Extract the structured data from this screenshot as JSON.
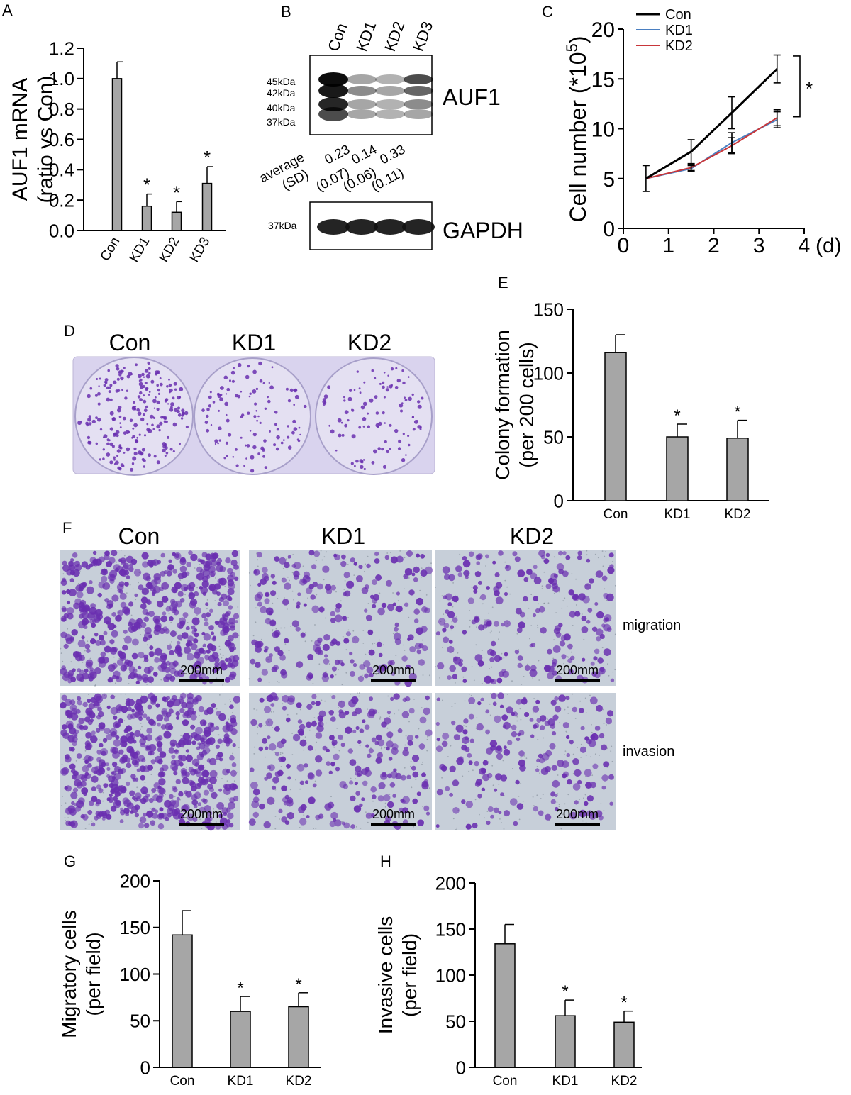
{
  "panels": {
    "A": {
      "label": "A"
    },
    "B": {
      "label": "B"
    },
    "C": {
      "label": "C"
    },
    "D": {
      "label": "D"
    },
    "E": {
      "label": "E"
    },
    "F": {
      "label": "F"
    },
    "G": {
      "label": "G"
    },
    "H": {
      "label": "H"
    }
  },
  "colors": {
    "bar_fill": "#a6a6a6",
    "line_con": "#000000",
    "line_kd1": "#4a7fc1",
    "line_kd2": "#c8363a",
    "crystal_violet": "#6a2fb0",
    "plate_bg": "#d9d3ee",
    "micro_bg": "#c7cfd9"
  },
  "western": {
    "lanes": [
      "Con",
      "KD1",
      "KD2",
      "KD3"
    ],
    "auf1_label": "AUF1",
    "gapdh_label": "GAPDH",
    "auf1_markers": [
      "45kDa",
      "42kDa",
      "40kDa",
      "37kDa"
    ],
    "gapdh_marker": "37kDa",
    "quant_label_1": "average",
    "quant_label_2": "(SD)",
    "quant_values": [
      "0.23",
      "0.14",
      "0.33"
    ],
    "quant_sds": [
      "(0.07)",
      "(0.06)",
      "(0.11)"
    ]
  },
  "colony_plate": {
    "labels": [
      "Con",
      "KD1",
      "KD2"
    ]
  },
  "transwell": {
    "column_labels": [
      "Con",
      "KD1",
      "KD2"
    ],
    "row_labels": [
      "migration",
      "invasion"
    ],
    "scale_bar": "200mm"
  },
  "chart_data": [
    {
      "id": "A",
      "type": "bar",
      "ylabel_line1": "AUF1 mRNA",
      "ylabel_line2": "(ratio vs Con)",
      "categories": [
        "Con",
        "KD1",
        "KD2",
        "KD3"
      ],
      "values": [
        1.0,
        0.16,
        0.12,
        0.31
      ],
      "errors": [
        0.11,
        0.08,
        0.07,
        0.11
      ],
      "significant": [
        false,
        true,
        true,
        true
      ],
      "star": "*",
      "ylim": [
        0,
        1.2
      ],
      "yticks": [
        "0.0",
        "0.2",
        "0.4",
        "0.6",
        "0.8",
        "1.0",
        "1.2"
      ]
    },
    {
      "id": "C",
      "type": "line",
      "ylabel": "Cell number (*10",
      "ylabel_sup": "5",
      "ylabel_close": ")",
      "xlabel": "(d)",
      "x": [
        0.5,
        1.5,
        2.4,
        3.4
      ],
      "series": [
        {
          "name": "Con",
          "values": [
            5.0,
            7.7,
            11.6,
            16.0
          ],
          "errors": [
            1.3,
            1.2,
            1.6,
            1.4
          ]
        },
        {
          "name": "KD1",
          "values": [
            5.0,
            6.0,
            8.6,
            10.9
          ],
          "errors": [
            0.0,
            0.3,
            1.0,
            0.8
          ]
        },
        {
          "name": "KD2",
          "values": [
            5.0,
            6.1,
            8.3,
            11.1
          ],
          "errors": [
            0.0,
            0.3,
            0.8,
            0.8
          ]
        }
      ],
      "xlim": [
        0,
        4
      ],
      "ylim": [
        0,
        20
      ],
      "xticks": [
        "0",
        "1",
        "2",
        "3",
        "4"
      ],
      "yticks": [
        "0",
        "5",
        "10",
        "15",
        "20"
      ],
      "legend": "top-left",
      "star": "*"
    },
    {
      "id": "E",
      "type": "bar",
      "ylabel_line1": "Colony formation",
      "ylabel_line2": "(per 200 cells)",
      "categories": [
        "Con",
        "KD1",
        "KD2"
      ],
      "values": [
        116,
        50,
        49
      ],
      "errors": [
        14,
        10,
        14
      ],
      "significant": [
        false,
        true,
        true
      ],
      "star": "*",
      "ylim": [
        0,
        150
      ],
      "yticks": [
        "0",
        "50",
        "100",
        "150"
      ]
    },
    {
      "id": "G",
      "type": "bar",
      "ylabel_line1": "Migratory cells",
      "ylabel_line2": "(per field)",
      "categories": [
        "Con",
        "KD1",
        "KD2"
      ],
      "values": [
        142,
        60,
        65
      ],
      "errors": [
        26,
        16,
        15
      ],
      "significant": [
        false,
        true,
        true
      ],
      "star": "*",
      "ylim": [
        0,
        200
      ],
      "yticks": [
        "0",
        "50",
        "100",
        "150",
        "200"
      ]
    },
    {
      "id": "H",
      "type": "bar",
      "ylabel_line1": "Invasive cells",
      "ylabel_line2": "(per field)",
      "categories": [
        "Con",
        "KD1",
        "KD2"
      ],
      "values": [
        134,
        56,
        49
      ],
      "errors": [
        21,
        17,
        12
      ],
      "significant": [
        false,
        true,
        true
      ],
      "star": "*",
      "ylim": [
        0,
        200
      ],
      "yticks": [
        "0",
        "50",
        "100",
        "150",
        "200"
      ]
    }
  ]
}
